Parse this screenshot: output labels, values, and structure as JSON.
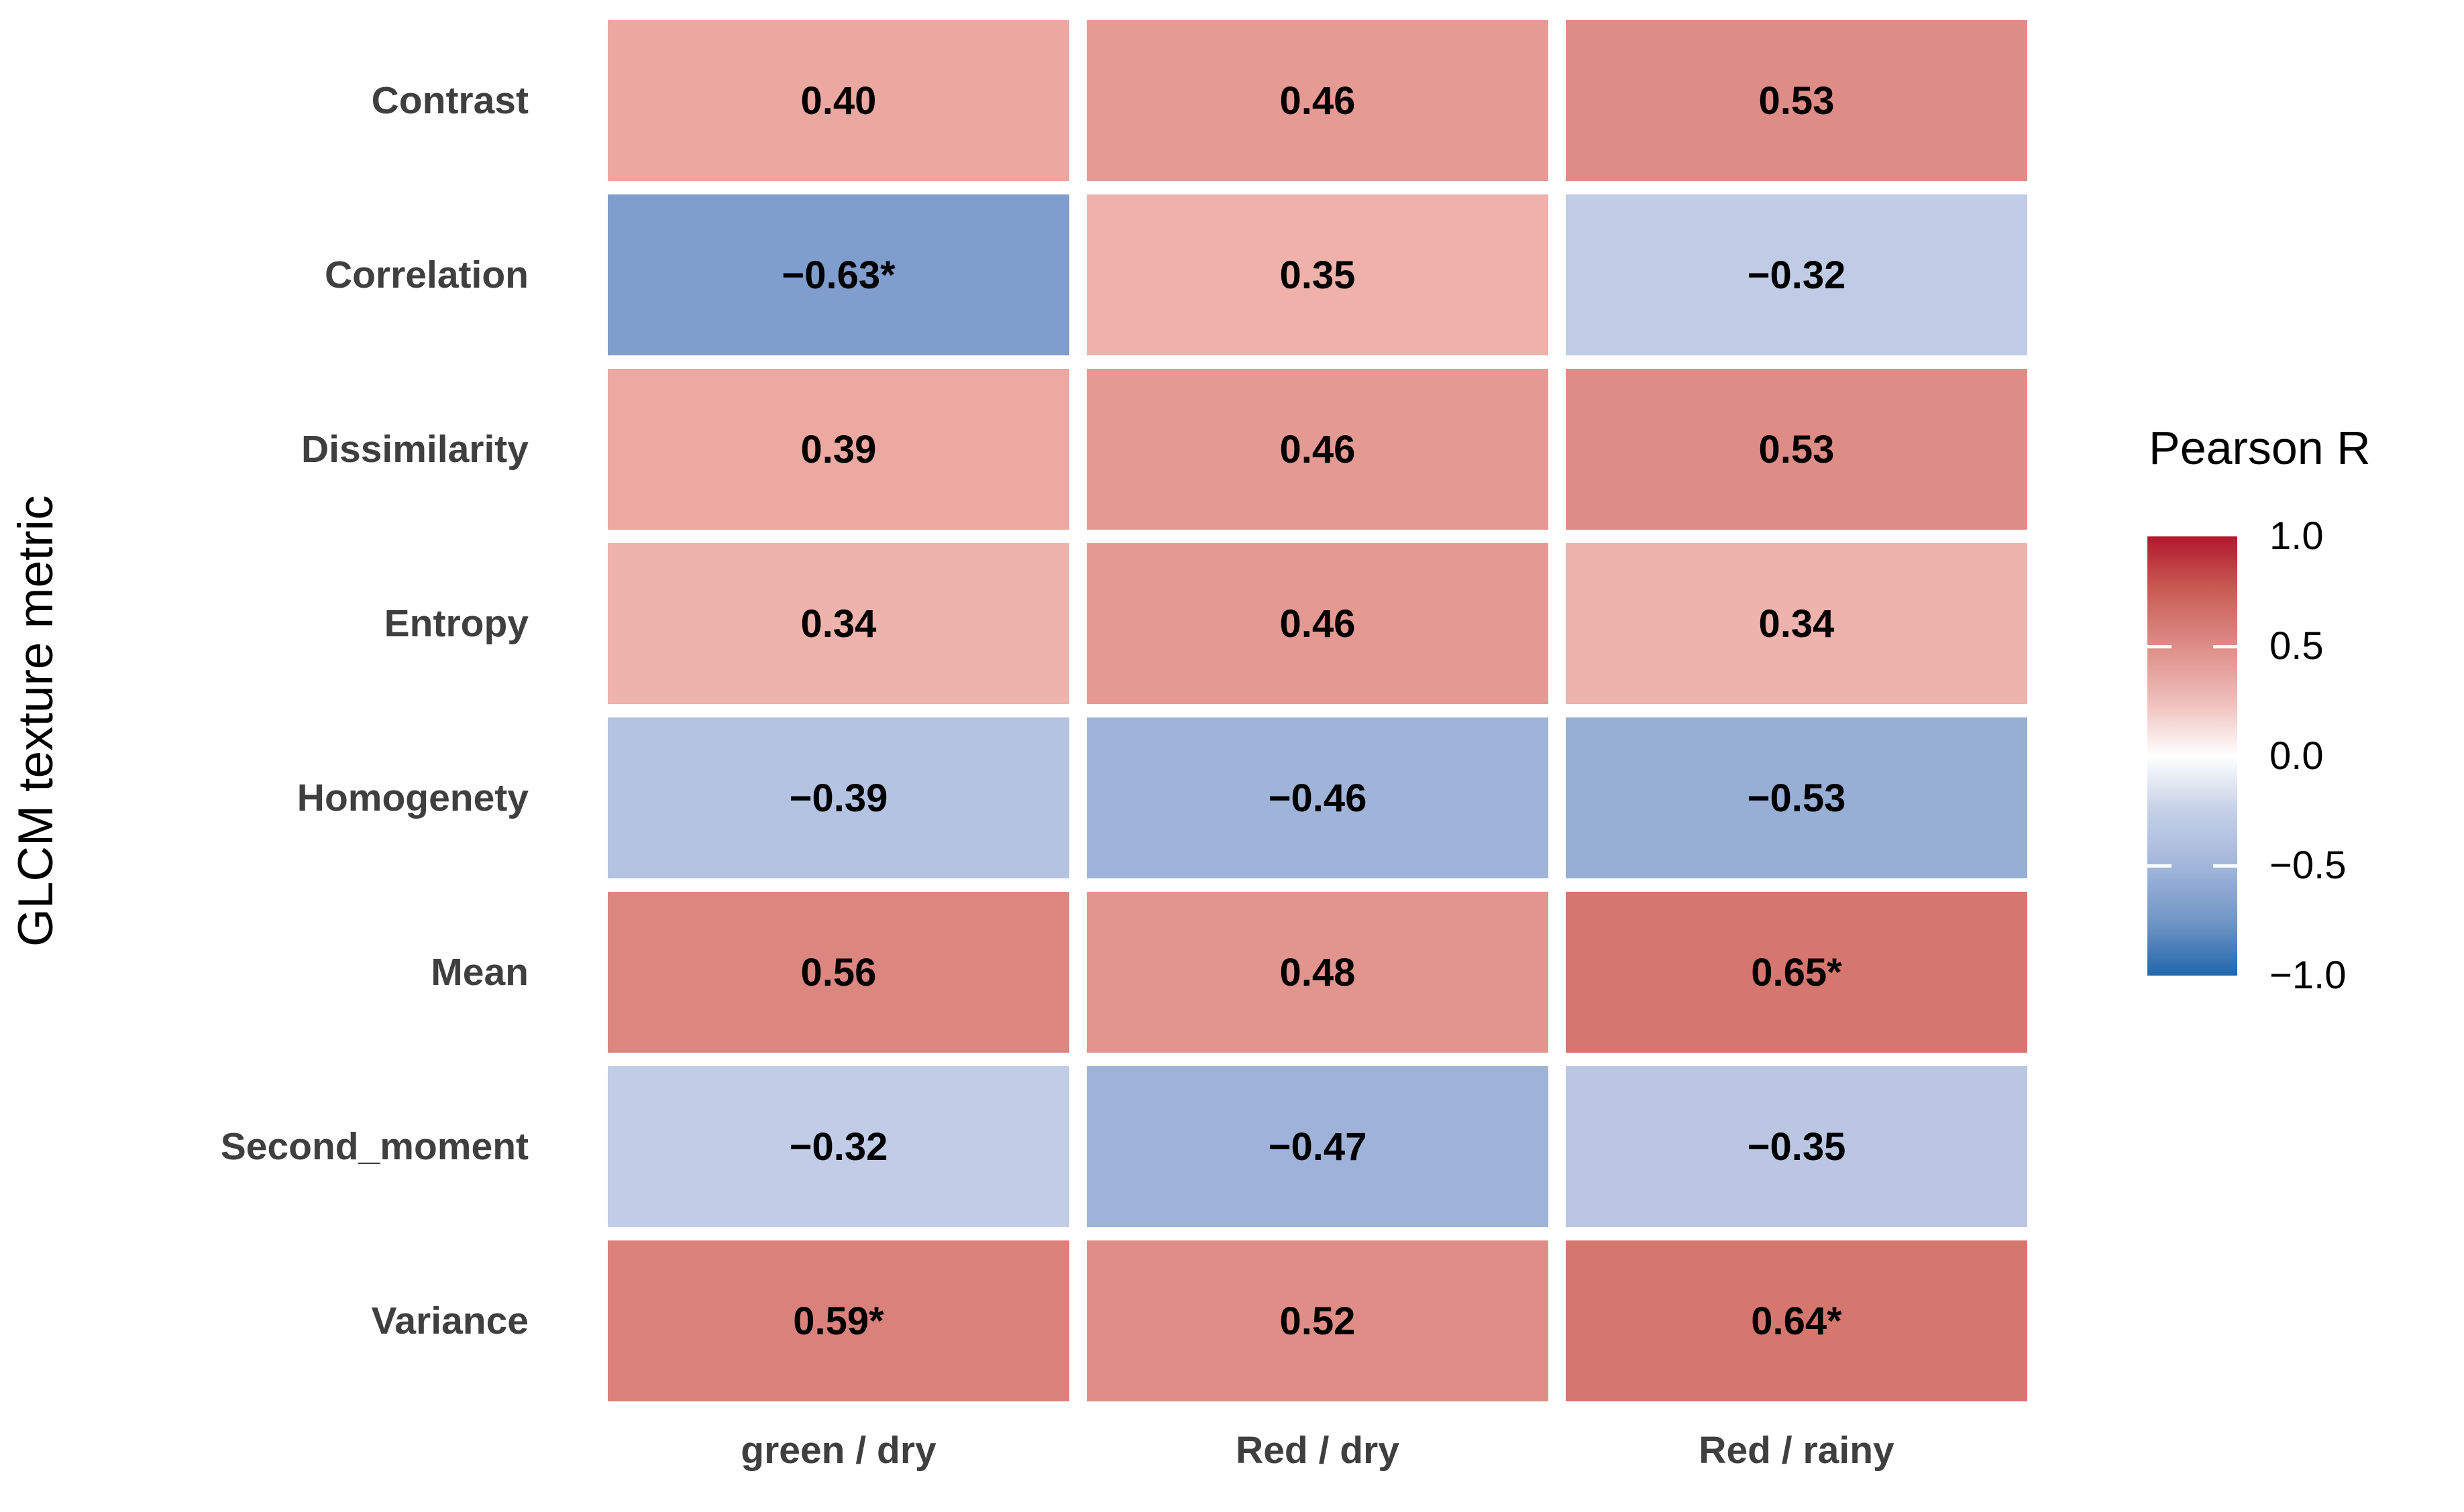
{
  "chart_data": {
    "type": "heatmap",
    "title": "",
    "xlabel": "",
    "ylabel": "GLCM texture metric",
    "rows": [
      "Contrast",
      "Correlation",
      "Dissimilarity",
      "Entropy",
      "Homogenety",
      "Mean",
      "Second_moment",
      "Variance"
    ],
    "columns": [
      "green / dry",
      "Red / dry",
      "Red / rainy"
    ],
    "values": [
      [
        0.4,
        0.46,
        0.53
      ],
      [
        -0.63,
        0.35,
        -0.32
      ],
      [
        0.39,
        0.46,
        0.53
      ],
      [
        0.34,
        0.46,
        0.34
      ],
      [
        -0.39,
        -0.46,
        -0.53
      ],
      [
        0.56,
        0.48,
        0.65
      ],
      [
        -0.32,
        -0.47,
        -0.35
      ],
      [
        0.59,
        0.52,
        0.64
      ]
    ],
    "cell_labels": [
      [
        "0.40",
        "0.46",
        "0.53"
      ],
      [
        "−0.63*",
        "0.35",
        "−0.32"
      ],
      [
        "0.39",
        "0.46",
        "0.53"
      ],
      [
        "0.34",
        "0.46",
        "0.34"
      ],
      [
        "−0.39",
        "−0.46",
        "−0.53"
      ],
      [
        "0.56",
        "0.48",
        "0.65*"
      ],
      [
        "−0.32",
        "−0.47",
        "−0.35"
      ],
      [
        "0.59*",
        "0.52",
        "0.64*"
      ]
    ],
    "cell_colors": [
      [
        "#eba8a1",
        "#e59a94",
        "#de8c86"
      ],
      [
        "#7f9dcd",
        "#eeb2ab",
        "#c0cce6"
      ],
      [
        "#eba9a2",
        "#e49a93",
        "#de8c86"
      ],
      [
        "#eeb3ac",
        "#e49a93",
        "#eeb3ac"
      ],
      [
        "#b4c3e2",
        "#a0b4d9",
        "#97aed5"
      ],
      [
        "#dc8680",
        "#e2948e",
        "#d5766f"
      ],
      [
        "#c1cce6",
        "#9fb3d8",
        "#bac6e2"
      ],
      [
        "#da817b",
        "#df8d86",
        "#d5766f"
      ]
    ],
    "colorbar": {
      "label": "Pearson R",
      "min": -1.0,
      "max": 1.0,
      "tick_labels": [
        "1.0",
        "0.5",
        "0.0",
        "−0.5",
        "−1.0"
      ],
      "gradient_stops": [
        [
          "0%",
          "#b2182b"
        ],
        [
          "12%",
          "#c85c55"
        ],
        [
          "25%",
          "#dd8d87"
        ],
        [
          "38%",
          "#efc0bb"
        ],
        [
          "50%",
          "#ffffff"
        ],
        [
          "62%",
          "#c6d1e8"
        ],
        [
          "75%",
          "#a2b6da"
        ],
        [
          "88%",
          "#6f95c6"
        ],
        [
          "100%",
          "#2166ac"
        ]
      ]
    },
    "legend_position": "right",
    "grid_on": false
  },
  "styles": {
    "axis_label_color": "#3f3f3f",
    "value_text_color": "#000000",
    "background": "#ffffff"
  }
}
